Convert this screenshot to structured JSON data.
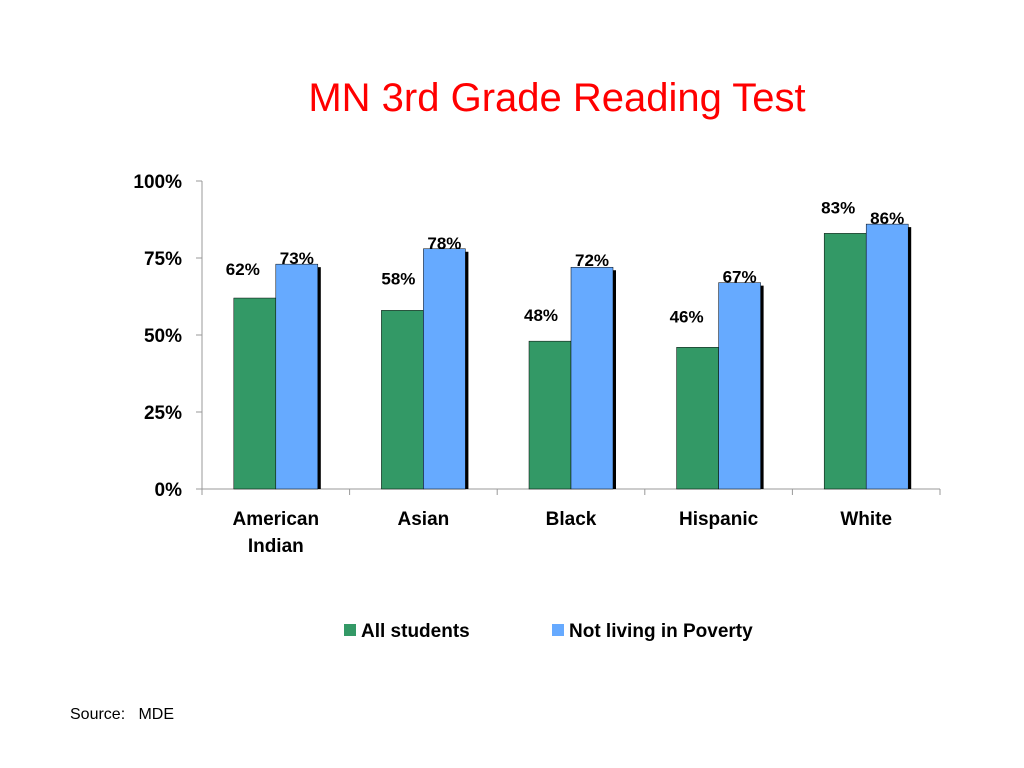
{
  "chart_data": {
    "type": "bar",
    "title": "MN 3rd Grade Reading Test",
    "xlabel": "",
    "ylabel": "",
    "categories": [
      [
        "American",
        "Indian"
      ],
      [
        "Asian"
      ],
      [
        "Black"
      ],
      [
        "Hispanic"
      ],
      [
        "White"
      ]
    ],
    "series": [
      {
        "name": "All students",
        "values": [
          62,
          58,
          48,
          46,
          83
        ],
        "color": "#339966"
      },
      {
        "name": "Not living in Poverty",
        "values": [
          73,
          78,
          72,
          67,
          86
        ],
        "color": "#66aaff"
      }
    ],
    "ylim": [
      0,
      100
    ],
    "yticks": [
      0,
      25,
      50,
      75,
      100
    ],
    "ytick_labels": [
      "0%",
      "25%",
      "50%",
      "75%",
      "100%"
    ],
    "data_labels": [
      [
        "62%",
        "58%",
        "48%",
        "46%",
        "83%"
      ],
      [
        "73%",
        "78%",
        "72%",
        "67%",
        "86%"
      ]
    ],
    "grid": false,
    "legend_position": "bottom"
  },
  "source": "Source:   MDE"
}
